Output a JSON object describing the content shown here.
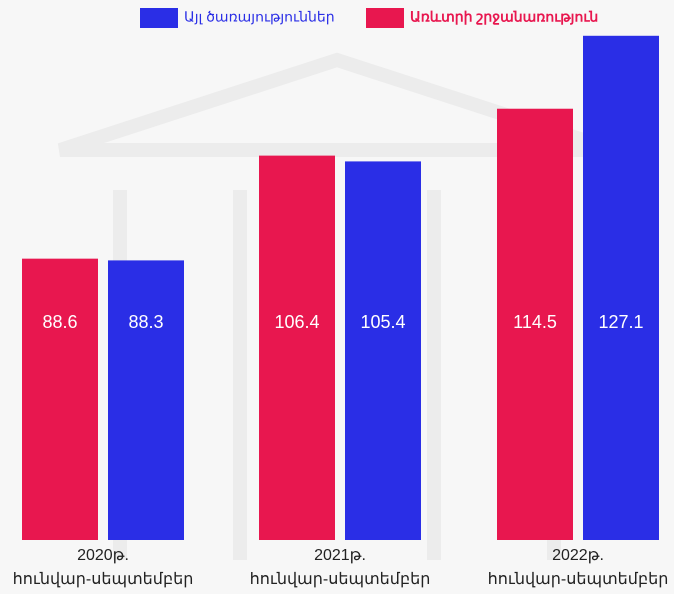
{
  "chart_data": {
    "type": "bar",
    "categories": [
      [
        "2020թ.",
        "հունվար-սեպտեմբեր"
      ],
      [
        "2021թ.",
        "հունվար-սեպտեմբեր"
      ],
      [
        "2022թ.",
        "հունվար-սեպտեմբեր"
      ]
    ],
    "series": [
      {
        "name": "Առևտրի շրջանառություն",
        "color": "#e8174f",
        "values": [
          88.6,
          106.4,
          114.5
        ]
      },
      {
        "name": "Այլ ծառայություններ",
        "color": "#2a2ee6",
        "values": [
          88.3,
          105.4,
          127.1
        ]
      }
    ],
    "legend_order": [
      1,
      0
    ],
    "ylim": [
      40,
      130
    ]
  }
}
